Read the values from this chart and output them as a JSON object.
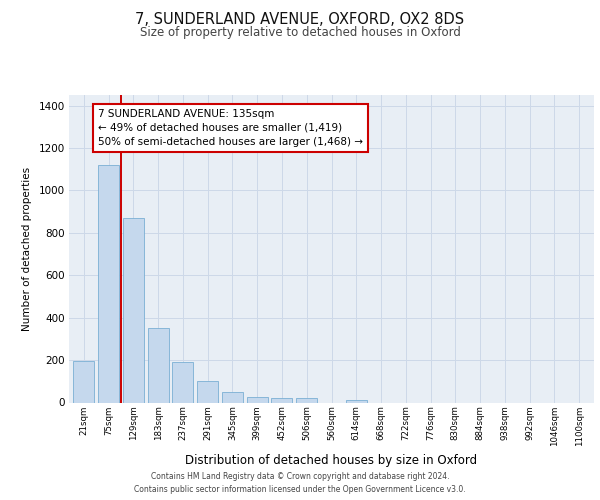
{
  "title_line1": "7, SUNDERLAND AVENUE, OXFORD, OX2 8DS",
  "title_line2": "Size of property relative to detached houses in Oxford",
  "xlabel": "Distribution of detached houses by size in Oxford",
  "ylabel": "Number of detached properties",
  "categories": [
    "21sqm",
    "75sqm",
    "129sqm",
    "183sqm",
    "237sqm",
    "291sqm",
    "345sqm",
    "399sqm",
    "452sqm",
    "506sqm",
    "560sqm",
    "614sqm",
    "668sqm",
    "722sqm",
    "776sqm",
    "830sqm",
    "884sqm",
    "938sqm",
    "992sqm",
    "1046sqm",
    "1100sqm"
  ],
  "values": [
    195,
    1120,
    870,
    350,
    190,
    100,
    50,
    25,
    20,
    20,
    0,
    10,
    0,
    0,
    0,
    0,
    0,
    0,
    0,
    0,
    0
  ],
  "bar_color": "#c5d8ed",
  "bar_edge_color": "#7bafd4",
  "vline_x": 1.5,
  "vline_color": "#cc0000",
  "ylim": [
    0,
    1450
  ],
  "yticks": [
    0,
    200,
    400,
    600,
    800,
    1000,
    1200,
    1400
  ],
  "grid_color": "#cdd8e8",
  "background_color": "#e8eef5",
  "annotation_text": "7 SUNDERLAND AVENUE: 135sqm\n← 49% of detached houses are smaller (1,419)\n50% of semi-detached houses are larger (1,468) →",
  "footer_line1": "Contains HM Land Registry data © Crown copyright and database right 2024.",
  "footer_line2": "Contains public sector information licensed under the Open Government Licence v3.0."
}
